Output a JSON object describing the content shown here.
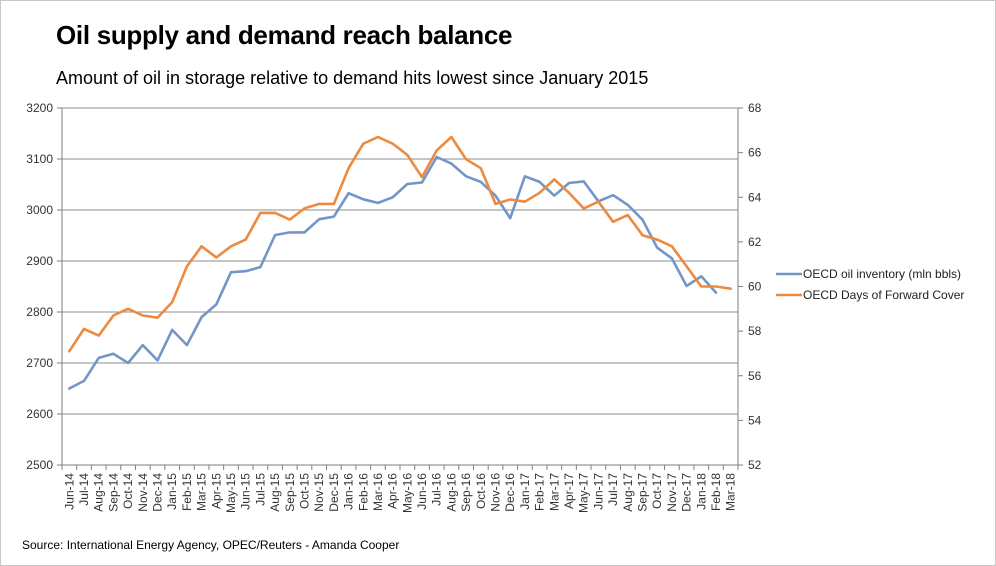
{
  "title": "Oil supply and demand reach balance",
  "subtitle": "Amount of oil in storage relative to demand hits lowest since January 2015",
  "source": "Source: International Energy Agency,  OPEC/Reuters - Amanda Cooper",
  "colors": {
    "inventory": "#7396c8",
    "cover": "#ed8a3f",
    "grid": "#8c8c8c",
    "axis": "#7f7f7f"
  },
  "chart_data": {
    "type": "line",
    "title": "Oil supply and demand reach balance",
    "subtitle": "Amount of oil in storage relative to demand hits lowest since January 2015",
    "categories": [
      "Jun-14",
      "Jul-14",
      "Aug-14",
      "Sep-14",
      "Oct-14",
      "Nov-14",
      "Dec-14",
      "Jan-15",
      "Feb-15",
      "Mar-15",
      "Apr-15",
      "May-15",
      "Jun-15",
      "Jul-15",
      "Aug-15",
      "Sep-15",
      "Oct-15",
      "Nov-15",
      "Dec-15",
      "Jan-16",
      "Feb-16",
      "Mar-16",
      "Apr-16",
      "May-16",
      "Jun-16",
      "Jul-16",
      "Aug-16",
      "Sep-16",
      "Oct-16",
      "Nov-16",
      "Dec-16",
      "Jan-17",
      "Feb-17",
      "Mar-17",
      "Apr-17",
      "May-17",
      "Jun-17",
      "Jul-17",
      "Aug-17",
      "Sep-17",
      "Oct-17",
      "Nov-17",
      "Dec-17",
      "Jan-18",
      "Feb-18",
      "Mar-18"
    ],
    "y_left": {
      "min": 2500,
      "max": 3200,
      "step": 100,
      "ticks": [
        "2500",
        "2600",
        "2700",
        "2800",
        "2900",
        "3000",
        "3100",
        "3200"
      ]
    },
    "y_right": {
      "min": 52,
      "max": 68,
      "step": 2,
      "ticks": [
        "52",
        "54",
        "56",
        "58",
        "60",
        "62",
        "64",
        "66",
        "68"
      ]
    },
    "grid": true,
    "legend_position": "right",
    "series": [
      {
        "name": "OECD oil inventory (mln bbls)",
        "axis": "left",
        "values": [
          2650,
          2665,
          2710,
          2718,
          2700,
          2735,
          2705,
          2765,
          2735,
          2790,
          2815,
          2878,
          2880,
          2888,
          2951,
          2956,
          2956,
          2982,
          2987,
          3033,
          3021,
          3014,
          3025,
          3051,
          3054,
          3104,
          3091,
          3066,
          3055,
          3028,
          2984,
          3066,
          3055,
          3028,
          3053,
          3056,
          3017,
          3029,
          3010,
          2981,
          2926,
          2905,
          2851,
          2870,
          2838,
          null
        ]
      },
      {
        "name": "OECD Days of Forward Cover",
        "axis": "right",
        "values": [
          57.1,
          58.1,
          57.8,
          58.7,
          59.0,
          58.7,
          58.6,
          59.3,
          60.9,
          61.8,
          61.3,
          61.8,
          62.1,
          63.3,
          63.3,
          63.0,
          63.5,
          63.7,
          63.7,
          65.3,
          66.4,
          66.7,
          66.4,
          65.9,
          64.9,
          66.1,
          66.7,
          65.7,
          65.3,
          63.7,
          63.9,
          63.8,
          64.2,
          64.8,
          64.2,
          63.5,
          63.8,
          62.9,
          63.2,
          62.3,
          62.1,
          61.8,
          60.9,
          60.0,
          60.0,
          59.9
        ]
      }
    ]
  }
}
